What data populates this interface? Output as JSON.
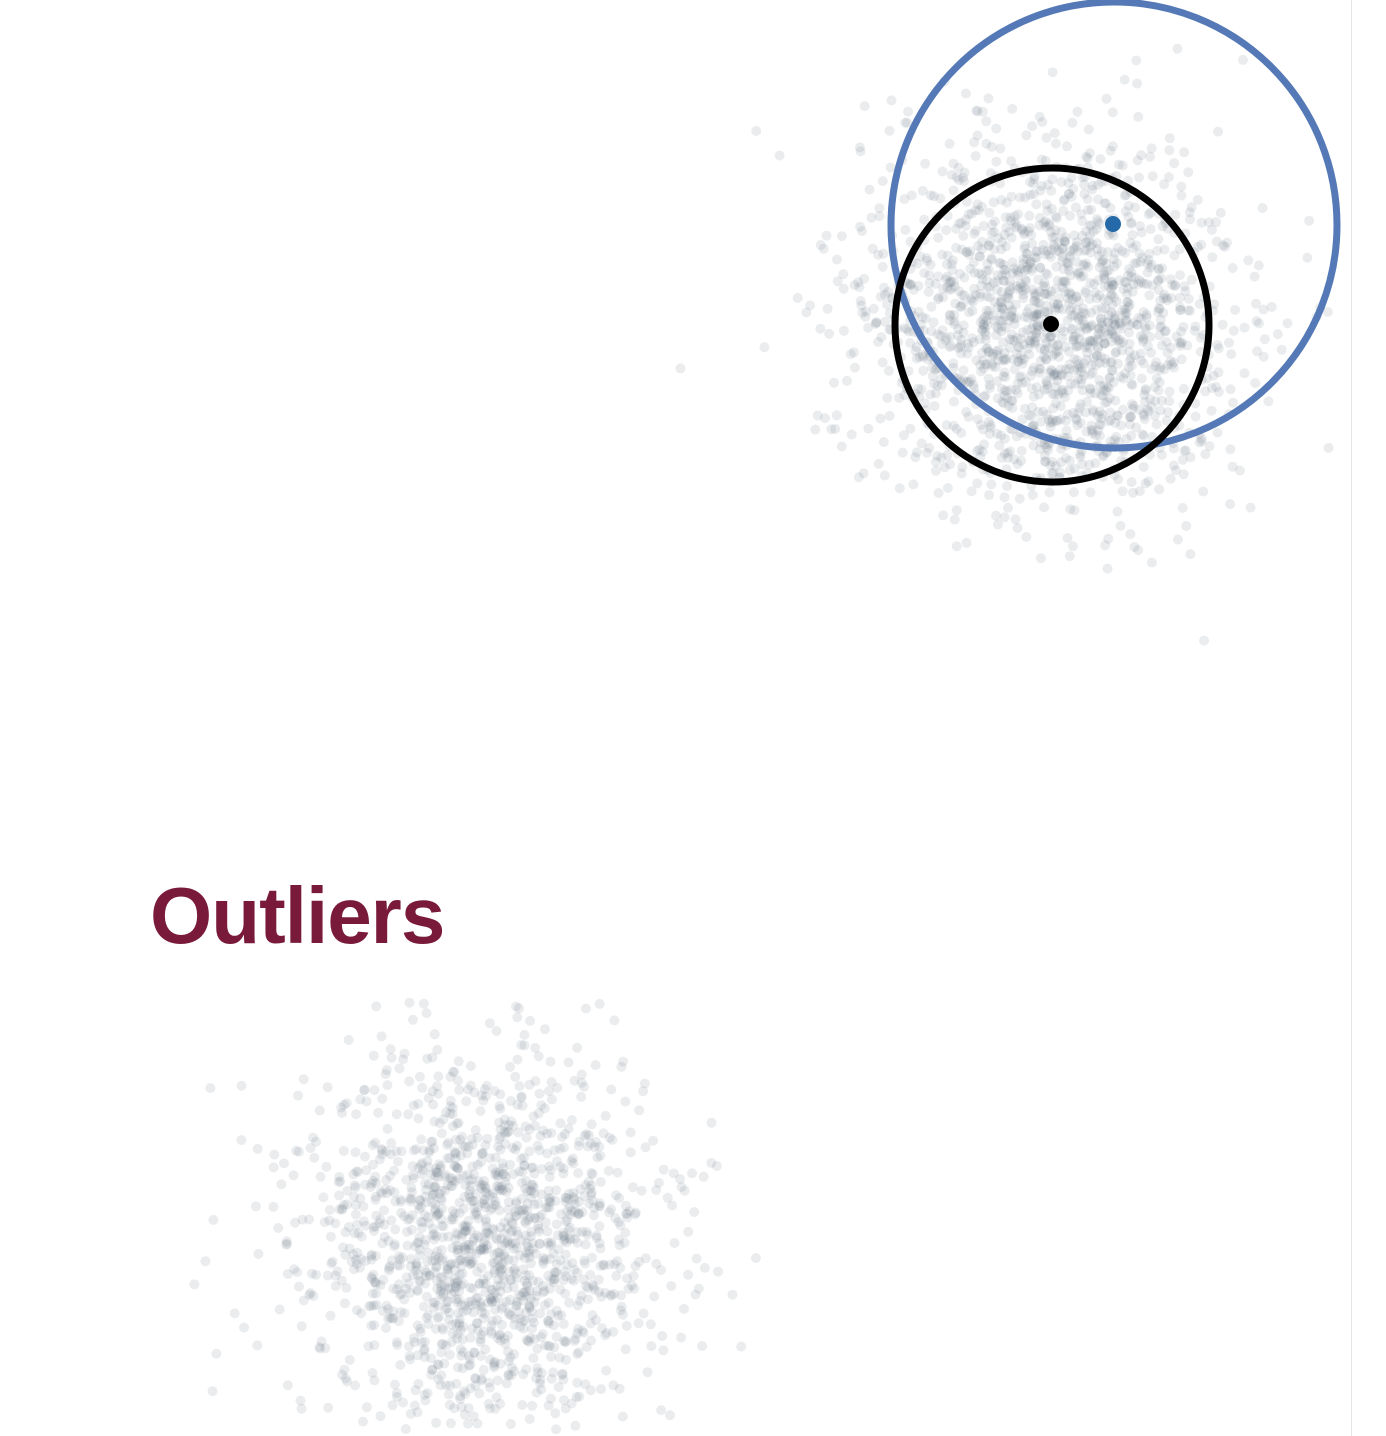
{
  "section": {
    "title": "Outliers"
  },
  "colors": {
    "title": "#7a1a3a",
    "point": "#6c7b8a",
    "large_circle": "#5479b6",
    "small_circle": "#000000",
    "highlight_point": "#2569a8",
    "center_point": "#000000"
  },
  "point_style": {
    "opacity": 0.14
  }
}
